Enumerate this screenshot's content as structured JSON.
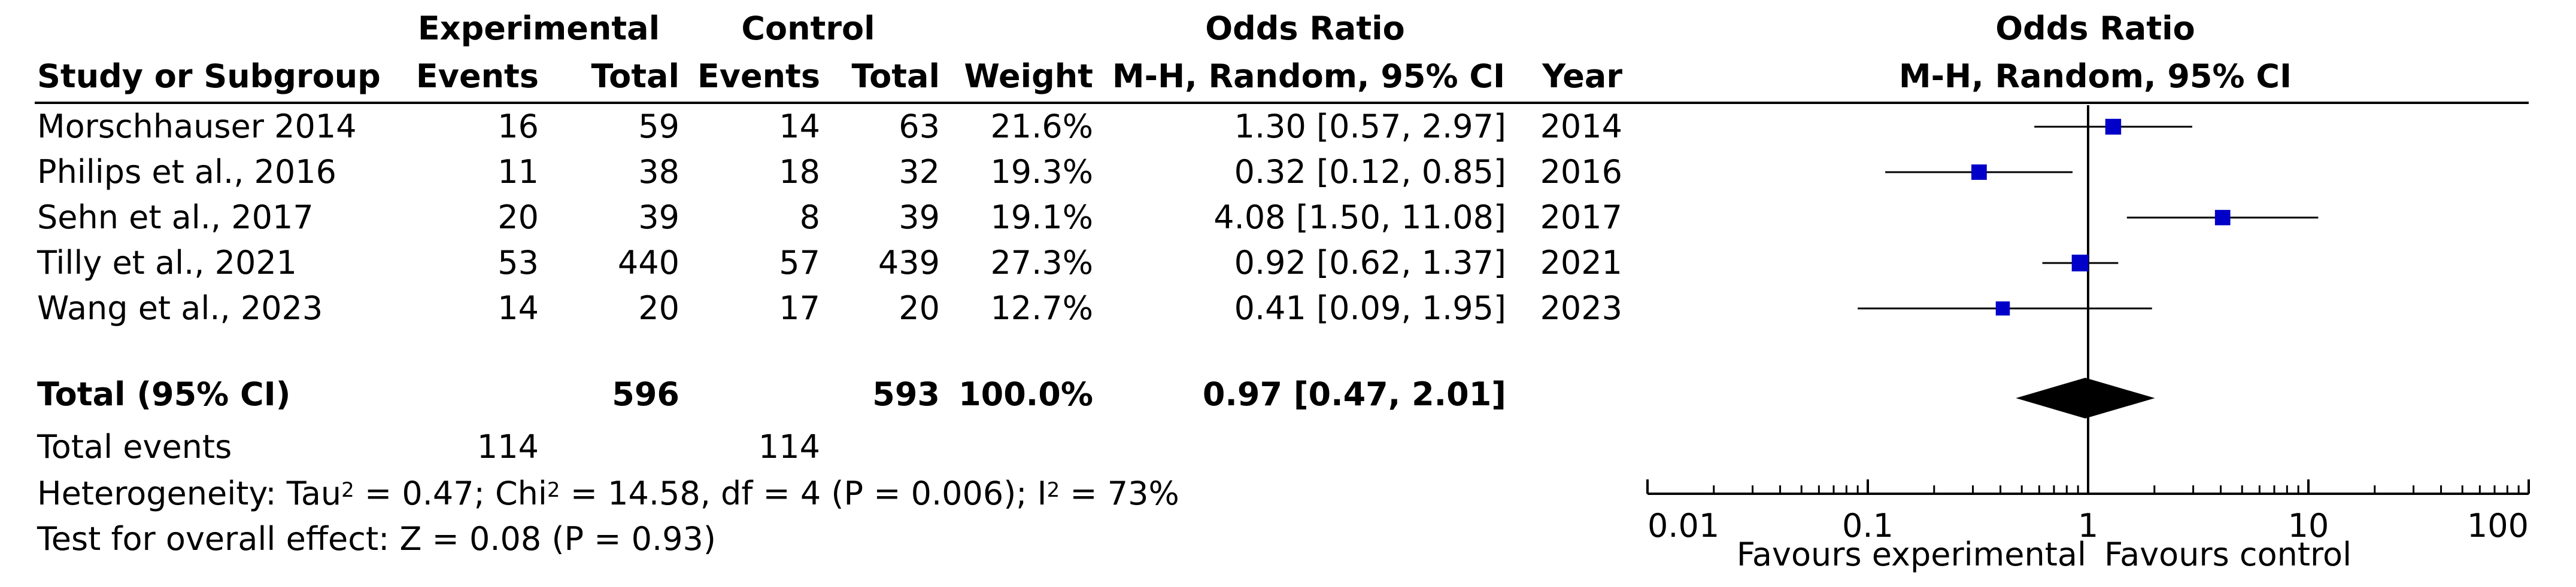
{
  "table": {
    "header": {
      "group_exp": "Experimental",
      "group_ctrl": "Control",
      "group_or": "Odds Ratio",
      "col_study": "Study or Subgroup",
      "col_events": "Events",
      "col_total": "Total",
      "col_weight": "Weight",
      "col_or": "M-H, Random, 95% CI",
      "col_year": "Year"
    },
    "rows": [
      {
        "study": "Morschhauser 2014",
        "exp_events": "16",
        "exp_total": "59",
        "ctrl_events": "14",
        "ctrl_total": "63",
        "weight": "21.6%",
        "or": "1.30 [0.57, 2.97]",
        "year": "2014"
      },
      {
        "study": "Philips et al., 2016",
        "exp_events": "11",
        "exp_total": "38",
        "ctrl_events": "18",
        "ctrl_total": "32",
        "weight": "19.3%",
        "or": "0.32 [0.12, 0.85]",
        "year": "2016"
      },
      {
        "study": "Sehn et al., 2017",
        "exp_events": "20",
        "exp_total": "39",
        "ctrl_events": "8",
        "ctrl_total": "39",
        "weight": "19.1%",
        "or": "4.08 [1.50, 11.08]",
        "year": "2017"
      },
      {
        "study": "Tilly et al., 2021",
        "exp_events": "53",
        "exp_total": "440",
        "ctrl_events": "57",
        "ctrl_total": "439",
        "weight": "27.3%",
        "or": "0.92 [0.62, 1.37]",
        "year": "2021"
      },
      {
        "study": "Wang et al., 2023",
        "exp_events": "14",
        "exp_total": "20",
        "ctrl_events": "17",
        "ctrl_total": "20",
        "weight": "12.7%",
        "or": "0.41 [0.09, 1.95]",
        "year": "2023"
      }
    ],
    "total": {
      "label": "Total (95% CI)",
      "exp_total": "596",
      "ctrl_total": "593",
      "weight": "100.0%",
      "or": "0.97 [0.47, 2.01]"
    },
    "total_events": {
      "label": "Total events",
      "exp": "114",
      "ctrl": "114"
    },
    "heterogeneity": {
      "p1": "Heterogeneity: Tau",
      "p2": " = 0.47; Chi",
      "p3": " = 14.58, df = 4 (P = 0.006); I",
      "p4": " = 73%",
      "sup": "2"
    },
    "overall_effect": "Test for overall effect: Z = 0.08 (P = 0.93)"
  },
  "chart_data": {
    "type": "forest",
    "title": "Odds Ratio",
    "subtitle": "M-H, Random, 95% CI",
    "x_scale": "log",
    "xlim": [
      0.01,
      100
    ],
    "ticks": [
      0.01,
      0.1,
      1,
      10,
      100
    ],
    "tick_labels": [
      "0.01",
      "0.1",
      "1",
      "10",
      "100"
    ],
    "reference_line": 1,
    "favours_left": "Favours experimental",
    "favours_right": "Favours control",
    "marker_color": "#0000c8",
    "diamond_color": "#000000",
    "studies": [
      {
        "name": "Morschhauser 2014",
        "or": 1.3,
        "lower": 0.57,
        "upper": 2.97,
        "weight": 21.6
      },
      {
        "name": "Philips et al., 2016",
        "or": 0.32,
        "lower": 0.12,
        "upper": 0.85,
        "weight": 19.3
      },
      {
        "name": "Sehn et al., 2017",
        "or": 4.08,
        "lower": 1.5,
        "upper": 11.08,
        "weight": 19.1
      },
      {
        "name": "Tilly et al., 2021",
        "or": 0.92,
        "lower": 0.62,
        "upper": 1.37,
        "weight": 27.3
      },
      {
        "name": "Wang et al., 2023",
        "or": 0.41,
        "lower": 0.09,
        "upper": 1.95,
        "weight": 12.7
      }
    ],
    "pooled": {
      "or": 0.97,
      "lower": 0.47,
      "upper": 2.01
    }
  }
}
